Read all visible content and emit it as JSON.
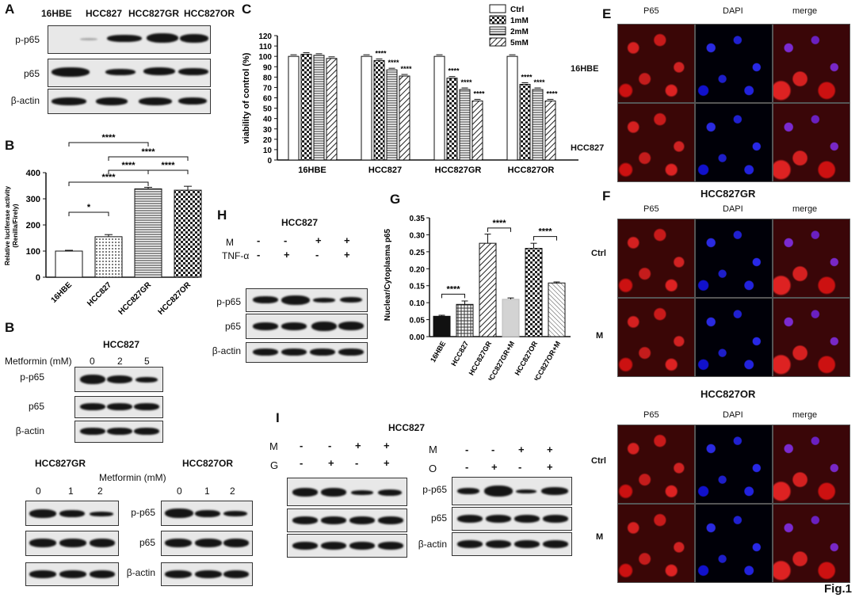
{
  "figure_label": "Fig.1",
  "panel_letters": {
    "A": "A",
    "B": "B",
    "B2": "B",
    "C": "C",
    "E": "E",
    "F": "F",
    "G": "G",
    "H": "H",
    "I": "I"
  },
  "panelA": {
    "lanes": [
      "16HBE",
      "HCC827",
      "HCC827GR",
      "HCC827OR"
    ],
    "rows": [
      "p-p65",
      "p65",
      "β-actin"
    ]
  },
  "panelB_chart": {
    "ylabel": "Relative luciferase activity (Renilla/Firely)",
    "ylabel_line1": "Relative luciferase activity",
    "ylabel_line2": "(Renilla/Firely)",
    "yticks": [
      "0",
      "100",
      "200",
      "300",
      "400"
    ],
    "sig": [
      "****",
      "****",
      "****",
      "****",
      "*"
    ]
  },
  "panelB_blot": {
    "title": "HCC827",
    "treatment": "Metformin (mM)",
    "doses": [
      "0",
      "2",
      "5"
    ],
    "rows": [
      "p-p65",
      "p65",
      "β-actin"
    ]
  },
  "panelB_blot2": {
    "title_left": "HCC827GR",
    "title_right": "HCC827OR",
    "treatment": "Metformin (mM)",
    "doses_left": [
      "0",
      "1",
      "2"
    ],
    "doses_right": [
      "0",
      "1",
      "2"
    ],
    "rows": [
      "p-p65",
      "p65",
      "β-actin"
    ]
  },
  "panelC": {
    "ylabel": "viability of control (%)",
    "yticks": [
      "0",
      "10",
      "20",
      "30",
      "40",
      "50",
      "60",
      "70",
      "80",
      "90",
      "100",
      "110",
      "120"
    ],
    "legend": [
      "Ctrl",
      "1mM",
      "2mM",
      "5mM"
    ],
    "sig": "****"
  },
  "panelE": {
    "cols": [
      "P65",
      "DAPI",
      "merge"
    ],
    "rows": [
      "16HBE",
      "HCC827"
    ]
  },
  "panelF": {
    "title_top": "HCC827GR",
    "title_bottom": "HCC827OR",
    "cols": [
      "P65",
      "DAPI",
      "merge"
    ],
    "rows": [
      "Ctrl",
      "M"
    ]
  },
  "panelG": {
    "ylabel": "Nuclear/Cytoplasma p65",
    "yticks": [
      "0.00",
      "0.05",
      "0.10",
      "0.15",
      "0.20",
      "0.25",
      "0.30",
      "0.35"
    ],
    "sig": "****"
  },
  "panelH": {
    "title": "HCC827",
    "row1_label": "M",
    "row2_label": "TNF-α",
    "row1": [
      "-",
      "-",
      "+",
      "+"
    ],
    "row2": [
      "-",
      "+",
      "-",
      "+"
    ],
    "rows": [
      "p-p65",
      "p65",
      "β-actin"
    ]
  },
  "panelI": {
    "title": "HCC827",
    "left_row1_label": "M",
    "left_row2_label": "G",
    "right_row1_label": "M",
    "right_row2_label": "O",
    "row1": [
      "-",
      "-",
      "+",
      "+"
    ],
    "row2": [
      "-",
      "+",
      "-",
      "+"
    ],
    "rows": [
      "p-p65",
      "p65",
      "β-actin"
    ]
  },
  "chart_data": [
    {
      "type": "bar",
      "categories": [
        "16HBE",
        "HCC827",
        "HCC827GR",
        "HCC827OR"
      ],
      "values": [
        100,
        155,
        338,
        333
      ],
      "errors": [
        3,
        8,
        6,
        15
      ],
      "ylim": [
        0,
        400
      ],
      "ylabel": "Relative luciferase activity (Renilla/Firely)",
      "patterns": [
        "white",
        "dots",
        "hlines",
        "checker"
      ]
    },
    {
      "type": "bar",
      "categories": [
        "16HBE",
        "HCC827",
        "HCC827GR",
        "HCC827OR"
      ],
      "series": [
        {
          "name": "Ctrl",
          "values": [
            100,
            100,
            100,
            100
          ]
        },
        {
          "name": "1mM",
          "values": [
            102,
            96,
            79,
            73
          ]
        },
        {
          "name": "2mM",
          "values": [
            101,
            87,
            68,
            68
          ]
        },
        {
          "name": "5mM",
          "values": [
            98,
            81,
            57,
            57
          ]
        }
      ],
      "ylim": [
        0,
        120
      ],
      "ylabel": "viability of control (%)"
    },
    {
      "type": "bar",
      "categories": [
        "16HBE",
        "HCC827",
        "HCC827GR",
        "HCC827GR+M",
        "HCC827OR",
        "HCC827OR+M"
      ],
      "values": [
        0.06,
        0.095,
        0.275,
        0.11,
        0.26,
        0.158
      ],
      "errors": [
        0.003,
        0.01,
        0.027,
        0.004,
        0.015,
        0.003
      ],
      "ylim": [
        0,
        0.35
      ],
      "ylabel": "Nuclear/Cytoplasma p65",
      "colors": [
        "#111111",
        "#999999",
        "#ffffff",
        "#d3d3d3",
        "#ffffff",
        "#aaaaaa"
      ]
    }
  ]
}
